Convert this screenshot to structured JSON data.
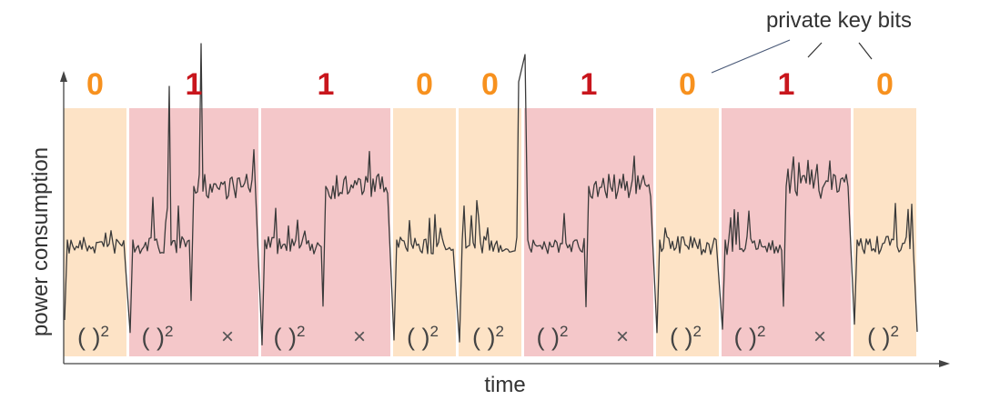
{
  "annotation": "private key bits",
  "axes": {
    "xlabel": "time",
    "ylabel": "power consumption"
  },
  "colors": {
    "bit0_fill": "#fde3c6",
    "bit1_fill": "#f4c7c9",
    "bit0_text": "#f7911e",
    "bit1_text": "#c8161d",
    "trace": "#3a3a3a",
    "axis": "#444444"
  },
  "operations": {
    "square_base": "( )",
    "square_exp": "2",
    "multiply": "×"
  },
  "segments": [
    {
      "bit": "0",
      "ops": [
        "square"
      ]
    },
    {
      "bit": "1",
      "ops": [
        "square",
        "multiply"
      ]
    },
    {
      "bit": "1",
      "ops": [
        "square",
        "multiply"
      ]
    },
    {
      "bit": "0",
      "ops": [
        "square"
      ]
    },
    {
      "bit": "0",
      "ops": [
        "square"
      ]
    },
    {
      "bit": "1",
      "ops": [
        "square",
        "multiply"
      ]
    },
    {
      "bit": "0",
      "ops": [
        "square"
      ]
    },
    {
      "bit": "1",
      "ops": [
        "square",
        "multiply"
      ]
    },
    {
      "bit": "0",
      "ops": [
        "square"
      ]
    }
  ]
}
